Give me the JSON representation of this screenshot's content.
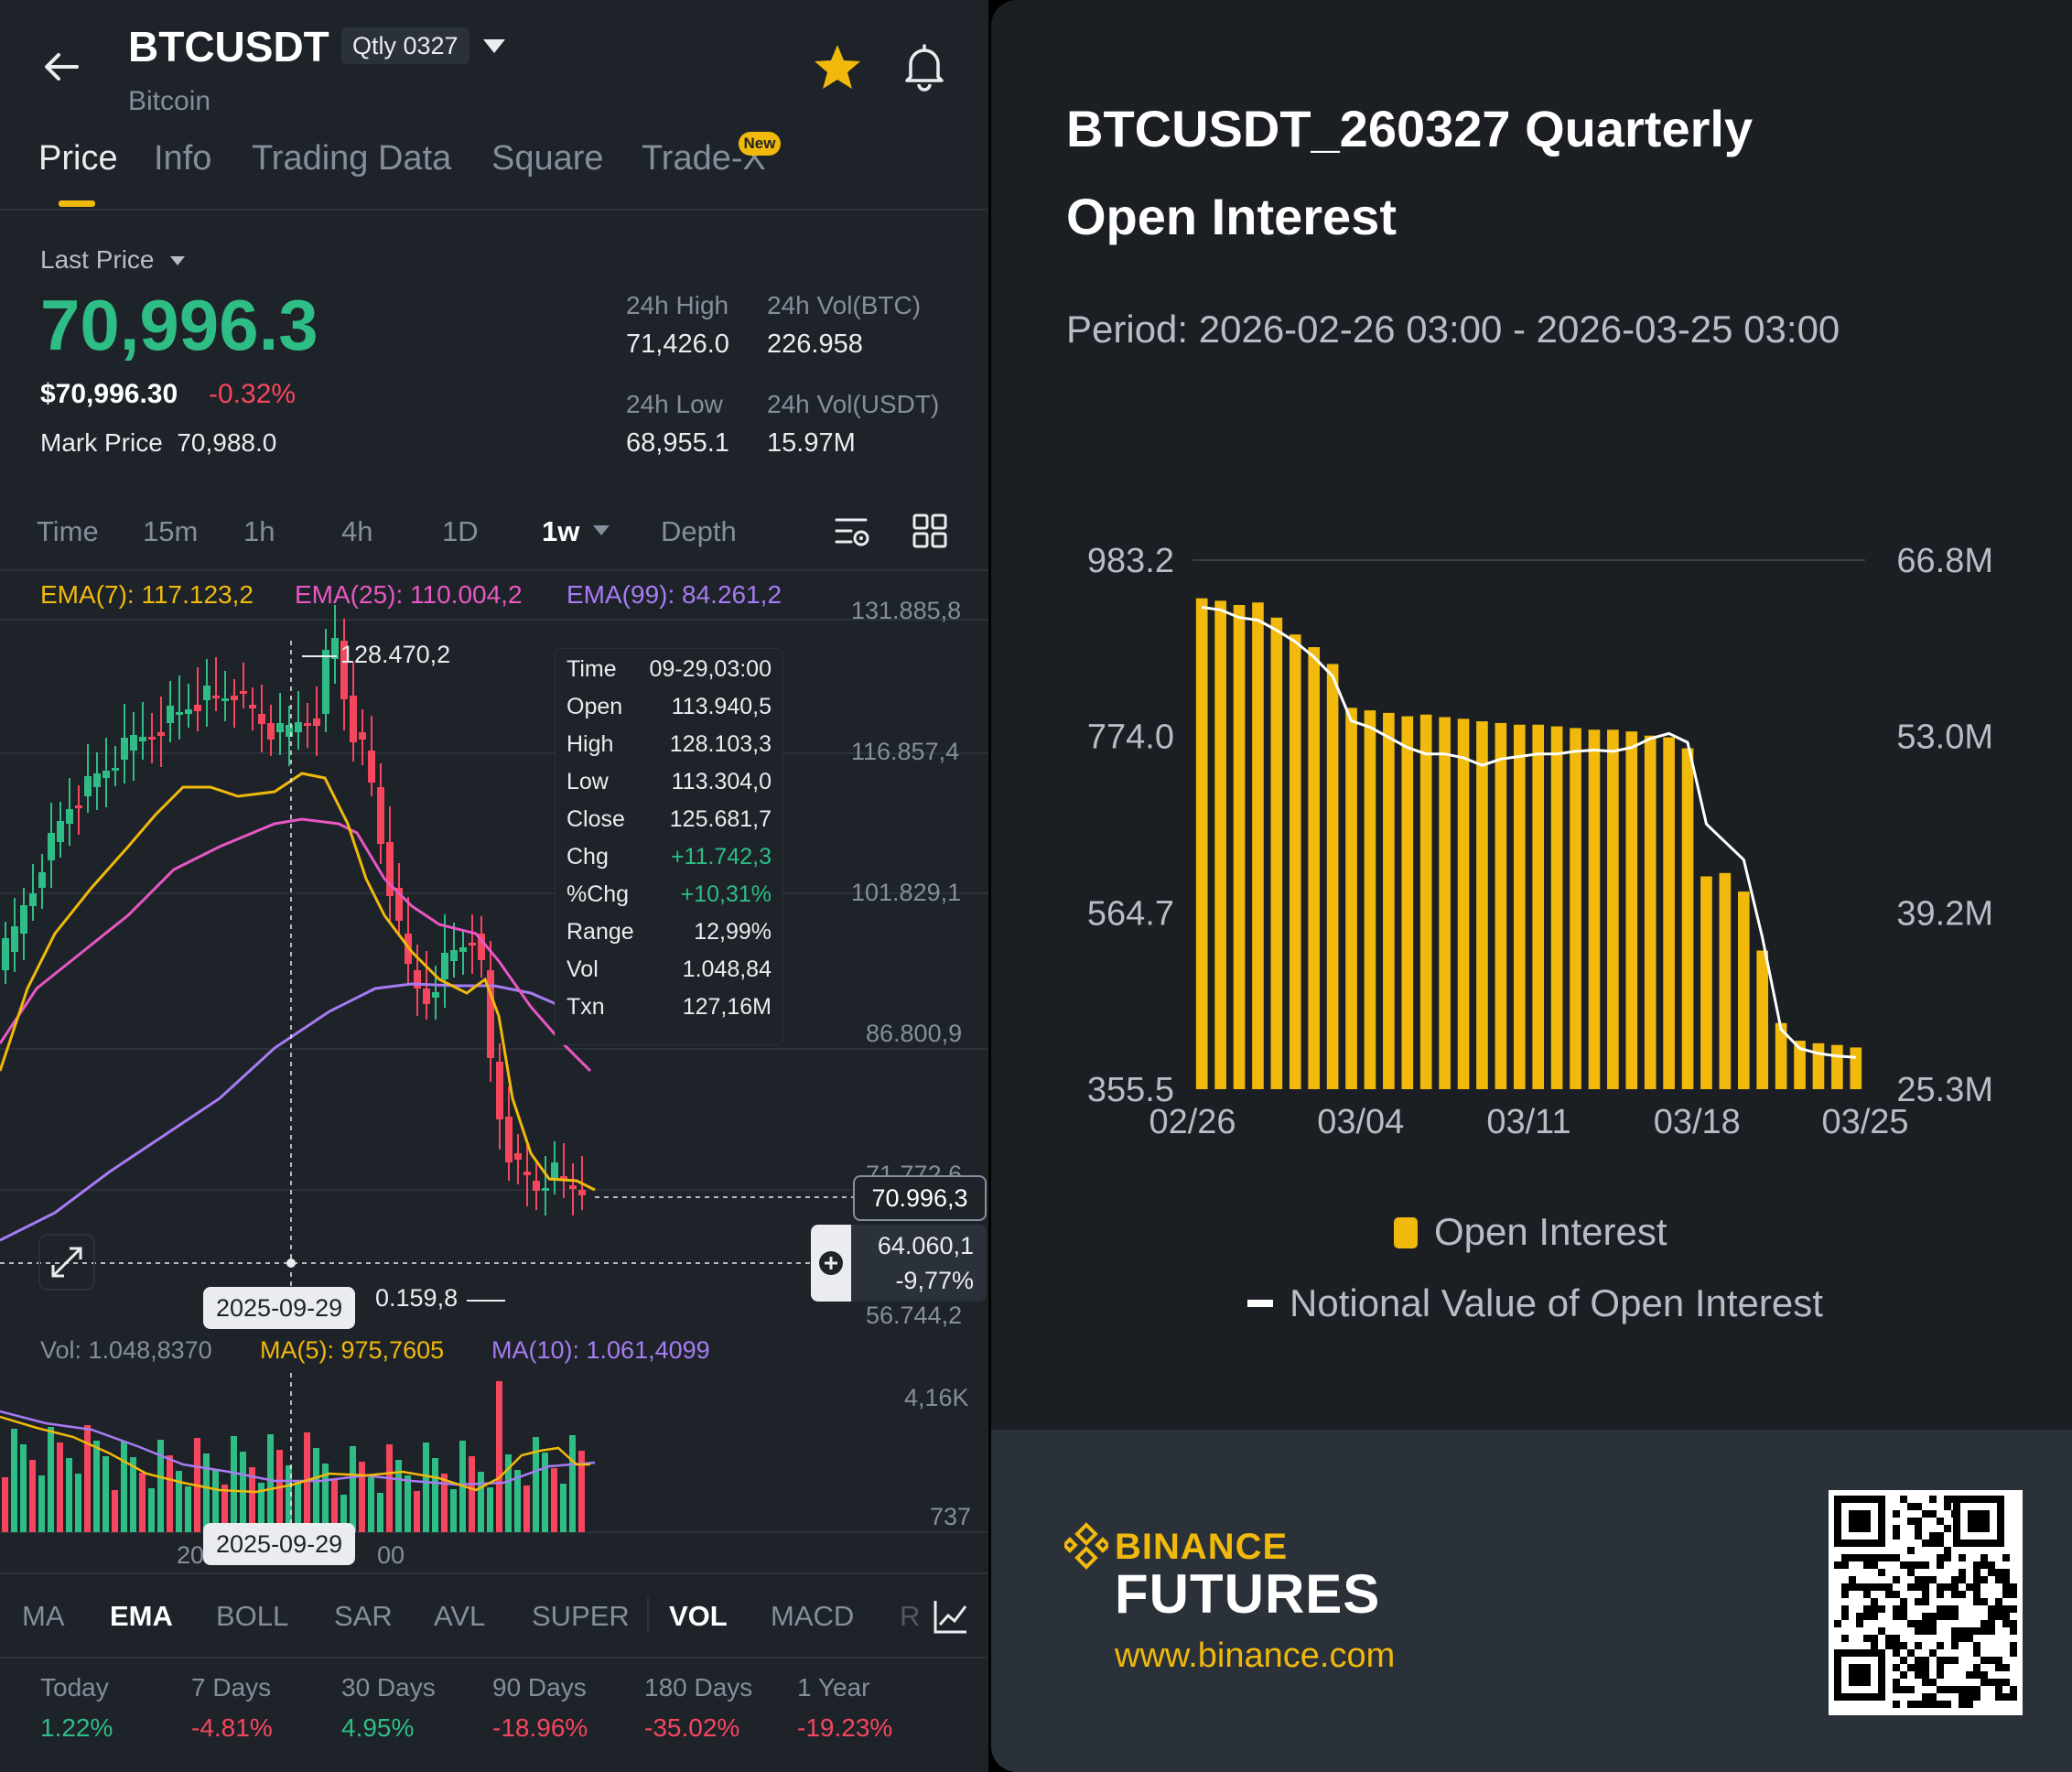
{
  "header": {
    "symbol": "BTCUSDT",
    "contract_badge": "Qtly 0327",
    "subtitle": "Bitcoin"
  },
  "tabs": [
    {
      "label": "Price",
      "active": true
    },
    {
      "label": "Info"
    },
    {
      "label": "Trading Data"
    },
    {
      "label": "Square"
    },
    {
      "label": "Trade-X",
      "badge": "New"
    }
  ],
  "price": {
    "last_price_label": "Last Price",
    "last_price": "70,996.3",
    "usd_price": "$70,996.30",
    "change_pct": "-0.32%",
    "mark_price_label": "Mark Price",
    "mark_price": "70,988.0"
  },
  "stats": {
    "high_label": "24h High",
    "high": "71,426.0",
    "vol_btc_label": "24h Vol(BTC)",
    "vol_btc": "226.958",
    "low_label": "24h Low",
    "low": "68,955.1",
    "vol_usdt_label": "24h Vol(USDT)",
    "vol_usdt": "15.97M"
  },
  "intervals": [
    "Time",
    "15m",
    "1h",
    "4h",
    "1D",
    "1w",
    "Depth"
  ],
  "active_interval": "1w",
  "ema": {
    "ema7": "EMA(7): 117.123,2",
    "ema25": "EMA(25): 110.004,2",
    "ema99": "EMA(99): 84.261,2"
  },
  "price_axis": [
    "131.885,8",
    "116.857,4",
    "101.829,1",
    "86.800,9",
    "71.772,6",
    "56.744,2"
  ],
  "chart_labels": {
    "high_marker": "128.470,2",
    "low_marker": "0.159,8",
    "current_price_box": "70.996,3",
    "crosshair_price": "64.060,1",
    "crosshair_change": "-9,77%",
    "crosshair_date": "2025-09-29",
    "volume_date": "2025-09-29",
    "volume_date_left_fragment": "20",
    "volume_date_right_fragment": "00"
  },
  "tooltip": [
    {
      "k": "Time",
      "v": "09-29,03:00"
    },
    {
      "k": "Open",
      "v": "113.940,5"
    },
    {
      "k": "High",
      "v": "128.103,3"
    },
    {
      "k": "Low",
      "v": "113.304,0"
    },
    {
      "k": "Close",
      "v": "125.681,7"
    },
    {
      "k": "Chg",
      "v": "+11.742,3"
    },
    {
      "k": "%Chg",
      "v": "+10,31%"
    },
    {
      "k": "Range",
      "v": "12,99%"
    },
    {
      "k": "Vol",
      "v": "1.048,84"
    },
    {
      "k": "Txn",
      "v": "127,16M"
    }
  ],
  "volume": {
    "vol": "Vol: 1.048,8370",
    "ma5": "MA(5): 975,7605",
    "ma10": "MA(10): 1.061,4099",
    "axis_top": "4,16K",
    "axis_bottom": "737"
  },
  "indicators": [
    "MA",
    "EMA",
    "BOLL",
    "SAR",
    "AVL",
    "SUPER",
    "VOL",
    "MACD",
    "R"
  ],
  "active_indicators": [
    "EMA",
    "VOL"
  ],
  "performance": [
    {
      "label": "Today",
      "value": "1.22%",
      "dir": "up"
    },
    {
      "label": "7 Days",
      "value": "-4.81%",
      "dir": "down"
    },
    {
      "label": "30 Days",
      "value": "4.95%",
      "dir": "up"
    },
    {
      "label": "90 Days",
      "value": "-18.96%",
      "dir": "down"
    },
    {
      "label": "180 Days",
      "value": "-35.02%",
      "dir": "down"
    },
    {
      "label": "1 Year",
      "value": "-19.23%",
      "dir": "down"
    }
  ],
  "colors": {
    "up": "#2ebd85",
    "down": "#f6465d",
    "accent": "#f0b90b",
    "ema7": "#f0b90b",
    "ema25": "#e957c4",
    "ema99": "#a77bf3"
  },
  "icons": [
    "back-arrow-icon",
    "dropdown-caret-icon",
    "star-icon",
    "bell-icon",
    "chart-settings-icon",
    "grid-layout-icon",
    "expand-icon",
    "plus-circle-icon",
    "line-chart-icon",
    "binance-logo-icon",
    "qr-code"
  ],
  "open_interest_panel": {
    "title_line1": "BTCUSDT_260327 Quarterly",
    "title_line2": "Open Interest",
    "period": "Period: 2026-02-26 03:00 - 2026-03-25 03:00",
    "brand": "BINANCE",
    "product": "FUTURES",
    "url": "www.binance.com"
  },
  "chart_data": {
    "type": "bar",
    "title": "",
    "xlabel": "",
    "ylabel": "",
    "x_ticks": [
      "02/26",
      "03/04",
      "03/11",
      "03/18",
      "03/25"
    ],
    "left_axis_ticks": [
      "983.2",
      "774.0",
      "564.7",
      "355.5"
    ],
    "right_axis_ticks": [
      "66.8M",
      "53.0M",
      "39.2M",
      "25.3M"
    ],
    "ylim": [
      355.5,
      983.2
    ],
    "y2lim": [
      25.3,
      66.8
    ],
    "legend_position": "bottom",
    "series": [
      {
        "name": "Open Interest",
        "type": "bar",
        "color": "#f0b90b",
        "values": [
          938,
          935,
          930,
          933,
          915,
          895,
          880,
          860,
          808,
          805,
          802,
          798,
          800,
          797,
          795,
          792,
          790,
          788,
          788,
          786,
          784,
          782,
          782,
          780,
          775,
          773,
          760,
          608,
          612,
          590,
          520,
          434,
          413,
          410,
          408,
          405
        ]
      },
      {
        "name": "Notional Value of Open Interest",
        "type": "line",
        "color": "#ffffff",
        "values": [
          63.1,
          62.9,
          62.3,
          62.1,
          61.3,
          60.4,
          59.2,
          57.7,
          54.2,
          53.7,
          52.9,
          52.1,
          51.6,
          51.6,
          51.3,
          50.7,
          51.2,
          51.4,
          51.6,
          51.6,
          51.8,
          51.9,
          51.8,
          52.1,
          52.8,
          53.2,
          52.5,
          46.1,
          44.7,
          43.3,
          37.2,
          30.0,
          28.5,
          28.1,
          27.9,
          27.8
        ]
      }
    ]
  }
}
